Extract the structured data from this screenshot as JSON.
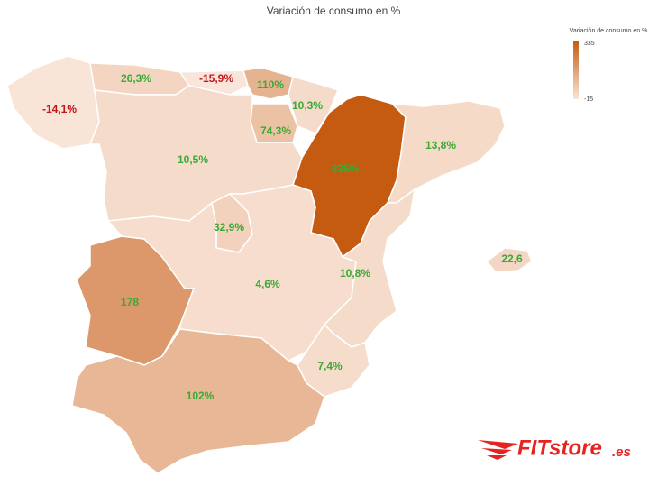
{
  "chart_data": {
    "type": "map",
    "title": "Variación de consumo en %",
    "values": [
      -14.1,
      26.3,
      -15.9,
      110,
      10.3,
      74.3,
      10.5,
      335,
      13.8,
      32.9,
      178,
      4.6,
      10.8,
      22.6,
      7.4,
      102
    ],
    "value_labels": [
      "-14,1%",
      "26,3%",
      "-15,9%",
      "110%",
      "10,3%",
      "74,3%",
      "10,5%",
      "335%",
      "13,8%",
      "32,9%",
      "178",
      "4,6%",
      "10,8%",
      "22,6",
      "7,4%",
      "102%"
    ],
    "colorbar": {
      "title": "Variación de consumo en %",
      "min": -15,
      "max": 335,
      "low_color": "#f9e5d8",
      "high_color": "#c55a11"
    },
    "positive_label_color": "#3aaa35",
    "negative_label_color": "#c0161c",
    "logo": {
      "name": "FITstore",
      "suffix": ".es"
    }
  }
}
